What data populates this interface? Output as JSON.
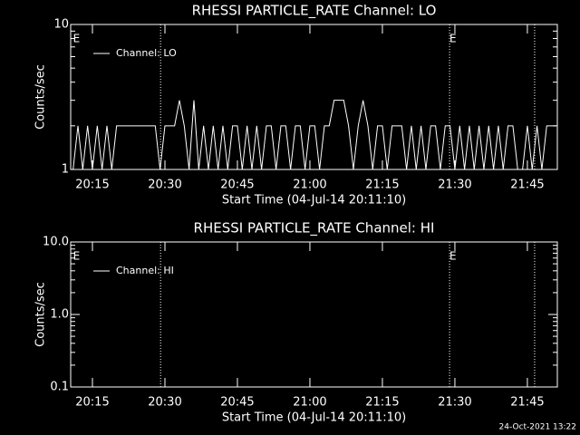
{
  "chart_data": [
    {
      "type": "line",
      "title": "RHESSI PARTICLE_RATE Channel: LO",
      "xlabel": "Start Time (04-Jul-14 20:11:10)",
      "ylabel": "Counts/sec",
      "log_y": true,
      "legend": "upper left",
      "xlim": [
        1210.5,
        1311.2
      ],
      "xticks": [
        {
          "value": 1215,
          "label": "20:15"
        },
        {
          "value": 1230,
          "label": "20:30"
        },
        {
          "value": 1245,
          "label": "20:45"
        },
        {
          "value": 1260,
          "label": "21:00"
        },
        {
          "value": 1275,
          "label": "21:15"
        },
        {
          "value": 1290,
          "label": "21:30"
        },
        {
          "value": 1305,
          "label": "21:45"
        }
      ],
      "ylim": [
        1,
        10
      ],
      "yticks": [
        1,
        10
      ],
      "vlines": [
        1229.1,
        1288.9,
        1306.5
      ],
      "markers": [
        {
          "x": 1211.7,
          "label": "E"
        },
        {
          "x": 1289.6,
          "label": "E"
        }
      ],
      "x": [
        1211,
        1212,
        1213,
        1214,
        1215,
        1216,
        1217,
        1218,
        1219,
        1220,
        1221,
        1222,
        1223,
        1224,
        1225,
        1226,
        1227,
        1228,
        1229,
        1230,
        1231,
        1232,
        1233,
        1234,
        1235,
        1236,
        1237,
        1238,
        1239,
        1240,
        1241,
        1242,
        1243,
        1244,
        1245,
        1246,
        1247,
        1248,
        1249,
        1250,
        1251,
        1252,
        1253,
        1254,
        1255,
        1256,
        1257,
        1258,
        1259,
        1260,
        1261,
        1262,
        1263,
        1264,
        1265,
        1266,
        1267,
        1268,
        1269,
        1270,
        1271,
        1272,
        1273,
        1274,
        1275,
        1276,
        1277,
        1278,
        1279,
        1280,
        1281,
        1282,
        1283,
        1284,
        1285,
        1286,
        1287,
        1288,
        1289,
        1290,
        1291,
        1292,
        1293,
        1294,
        1295,
        1296,
        1297,
        1298,
        1299,
        1300,
        1301,
        1302,
        1303,
        1304,
        1305,
        1306,
        1307,
        1308,
        1309,
        1310,
        1311
      ],
      "series": [
        {
          "name": "Channel: LO",
          "color": "#ffffff",
          "values": [
            1,
            2,
            1,
            2,
            1,
            2,
            1,
            2,
            1,
            2,
            2,
            2,
            2,
            2,
            2,
            2,
            2,
            2,
            1,
            2,
            2,
            2,
            3,
            2,
            1,
            3,
            1,
            2,
            1,
            2,
            1,
            2,
            1,
            2,
            2,
            1,
            2,
            1,
            2,
            1,
            2,
            2,
            1,
            2,
            2,
            1,
            2,
            2,
            1,
            2,
            2,
            1,
            2,
            2,
            3,
            3,
            3,
            2,
            1,
            2,
            3,
            2,
            1,
            2,
            2,
            1,
            2,
            2,
            2,
            1,
            2,
            1,
            2,
            1,
            2,
            2,
            1,
            2,
            2,
            1,
            2,
            1,
            2,
            1,
            2,
            1,
            2,
            1,
            2,
            1,
            2,
            2,
            1,
            1,
            2,
            1,
            2,
            1,
            2,
            2,
            2
          ]
        }
      ]
    },
    {
      "type": "line",
      "title": "RHESSI PARTICLE_RATE Channel: HI",
      "xlabel": "Start Time (04-Jul-14 20:11:10)",
      "ylabel": "Counts/sec",
      "log_y": true,
      "legend": "upper left",
      "xlim": [
        1210.5,
        1311.2
      ],
      "xticks": [
        {
          "value": 1215,
          "label": "20:15"
        },
        {
          "value": 1230,
          "label": "20:30"
        },
        {
          "value": 1245,
          "label": "20:45"
        },
        {
          "value": 1260,
          "label": "21:00"
        },
        {
          "value": 1275,
          "label": "21:15"
        },
        {
          "value": 1290,
          "label": "21:30"
        },
        {
          "value": 1305,
          "label": "21:45"
        }
      ],
      "ylim": [
        0.1,
        10
      ],
      "yticks": [
        0.1,
        {
          "value": 1,
          "label": "1.0"
        },
        {
          "value": 10,
          "label": "10.0"
        }
      ],
      "vlines": [
        1229.1,
        1288.9,
        1306.5
      ],
      "markers": [
        {
          "x": 1211.7,
          "label": "E"
        },
        {
          "x": 1289.6,
          "label": "E"
        }
      ],
      "x": [],
      "series": [
        {
          "name": "Channel: HI",
          "color": "#ffffff",
          "values": []
        }
      ]
    }
  ],
  "footer": "24-Oct-2021 13:22"
}
